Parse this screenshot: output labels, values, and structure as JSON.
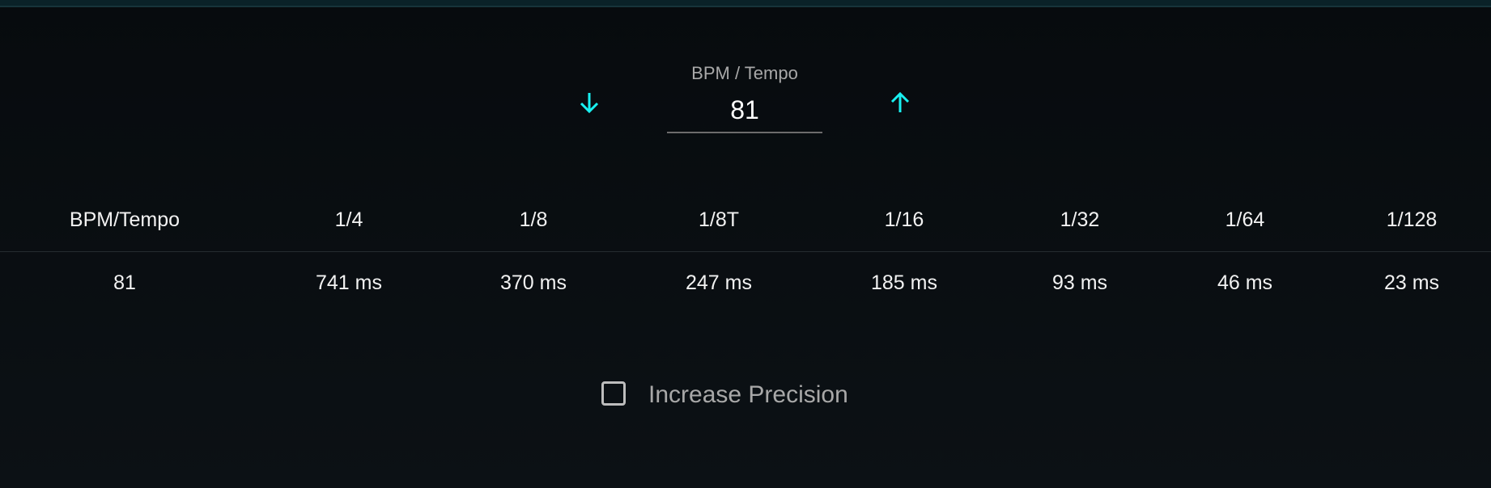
{
  "accent_color": "#19f0f0",
  "tempo": {
    "label": "BPM / Tempo",
    "value": "81",
    "decrease_icon": "arrow-down-icon",
    "increase_icon": "arrow-up-icon"
  },
  "table": {
    "headers": [
      "BPM/Tempo",
      "1/4",
      "1/8",
      "1/8T",
      "1/16",
      "1/32",
      "1/64",
      "1/128"
    ],
    "values": [
      "81",
      "741 ms",
      "370 ms",
      "247 ms",
      "185 ms",
      "93 ms",
      "46 ms",
      "23 ms"
    ]
  },
  "precision": {
    "label": "Increase Precision",
    "checked": false
  }
}
